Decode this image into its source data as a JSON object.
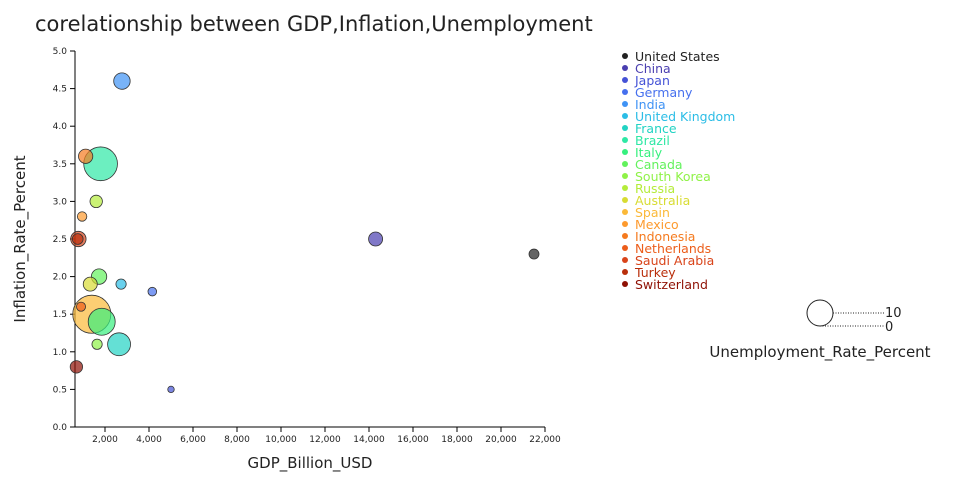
{
  "chart_data": {
    "type": "scatter",
    "title": "corelationship between GDP,Inflation,Unemployment",
    "xlabel": "GDP_Billion_USD",
    "ylabel": "Inflation_Rate_Percent",
    "size_label": "Unemployment_Rate_Percent",
    "xlim": [
      640,
      22000
    ],
    "ylim": [
      0,
      5
    ],
    "x_ticks": [
      2000,
      4000,
      6000,
      8000,
      10000,
      12000,
      14000,
      16000,
      18000,
      20000,
      22000
    ],
    "x_tick_labels": [
      "2,000",
      "4,000",
      "6,000",
      "8,000",
      "10,000",
      "12,000",
      "14,000",
      "16,000",
      "18,000",
      "20,000",
      "22,000"
    ],
    "y_ticks": [
      0,
      0.5,
      1,
      1.5,
      2,
      2.5,
      3,
      3.5,
      4,
      4.5,
      5
    ],
    "y_tick_labels": [
      "0.0",
      "0.5",
      "1.0",
      "1.5",
      "2.0",
      "2.5",
      "3.0",
      "3.5",
      "4.0",
      "4.5",
      "5.0"
    ],
    "size_legend": {
      "values": [
        10,
        0
      ],
      "labels": [
        "10",
        "0"
      ]
    },
    "legend_position": "right",
    "grid": false,
    "points": [
      {
        "name": "United States",
        "gdp": 21500,
        "inflation": 2.3,
        "unemployment": 3.7,
        "color": "#222222"
      },
      {
        "name": "China",
        "gdp": 14300,
        "inflation": 2.5,
        "unemployment": 5.2,
        "color": "#4a3fb0"
      },
      {
        "name": "Japan",
        "gdp": 5000,
        "inflation": 0.5,
        "unemployment": 2.4,
        "color": "#4452d6"
      },
      {
        "name": "Germany",
        "gdp": 4150,
        "inflation": 1.8,
        "unemployment": 3.2,
        "color": "#4670ee"
      },
      {
        "name": "India",
        "gdp": 2770,
        "inflation": 4.6,
        "unemployment": 6.1,
        "color": "#3f93f5"
      },
      {
        "name": "United Kingdom",
        "gdp": 2730,
        "inflation": 1.9,
        "unemployment": 3.8,
        "color": "#2bbde6"
      },
      {
        "name": "France",
        "gdp": 2640,
        "inflation": 1.1,
        "unemployment": 8.5,
        "color": "#22d3c3"
      },
      {
        "name": "Brazil",
        "gdp": 1800,
        "inflation": 3.5,
        "unemployment": 12.5,
        "color": "#2ee8a5"
      },
      {
        "name": "Italy",
        "gdp": 1850,
        "inflation": 1.4,
        "unemployment": 10.0,
        "color": "#36f07e"
      },
      {
        "name": "Canada",
        "gdp": 1730,
        "inflation": 2.0,
        "unemployment": 5.7,
        "color": "#62f25c"
      },
      {
        "name": "South Korea",
        "gdp": 1640,
        "inflation": 1.1,
        "unemployment": 3.8,
        "color": "#8ff247"
      },
      {
        "name": "Russia",
        "gdp": 1600,
        "inflation": 3.0,
        "unemployment": 4.6,
        "color": "#b5ec3a"
      },
      {
        "name": "Australia",
        "gdp": 1330,
        "inflation": 1.9,
        "unemployment": 5.2,
        "color": "#d8dc33"
      },
      {
        "name": "Spain",
        "gdp": 1400,
        "inflation": 1.5,
        "unemployment": 14.1,
        "color": "#fbb938"
      },
      {
        "name": "Mexico",
        "gdp": 960,
        "inflation": 2.8,
        "unemployment": 3.5,
        "color": "#fd9a2e"
      },
      {
        "name": "Indonesia",
        "gdp": 1120,
        "inflation": 3.6,
        "unemployment": 5.3,
        "color": "#f57a1e"
      },
      {
        "name": "Netherlands",
        "gdp": 910,
        "inflation": 1.6,
        "unemployment": 3.4,
        "color": "#ec5d1a"
      },
      {
        "name": "Saudi Arabia",
        "gdp": 790,
        "inflation": 2.5,
        "unemployment": 5.7,
        "color": "#d9441a"
      },
      {
        "name": "Turkey",
        "gdp": 760,
        "inflation": 2.5,
        "unemployment": 4.0,
        "color": "#b92e0b"
      },
      {
        "name": "Switzerland",
        "gdp": 700,
        "inflation": 0.8,
        "unemployment": 4.6,
        "color": "#8e1004"
      }
    ]
  }
}
